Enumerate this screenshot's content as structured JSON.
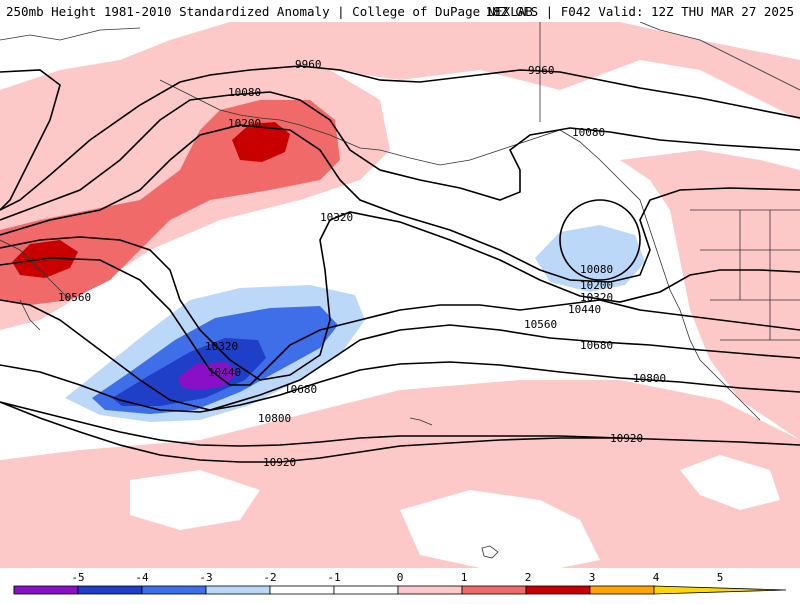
{
  "header": {
    "title_left": "250mb Height 1981-2010 Standardized Anomaly | College of DuPage NEXLAB",
    "title_right": "18Z GFS | F042 Valid: 12Z THU MAR 27 2025"
  },
  "contour_labels": {
    "c9960": "9960",
    "c10080": "10080",
    "c10200": "10200",
    "c10320": "10320",
    "c10440": "10440",
    "c10560": "10560",
    "c10680": "10680",
    "c10800": "10800",
    "c10920": "10920"
  },
  "legend": {
    "ticks": [
      "-5",
      "-4",
      "-3",
      "-2",
      "-1",
      "0",
      "1",
      "2",
      "3",
      "4",
      "5"
    ],
    "colors": [
      "#e060e0",
      "#8a10c8",
      "#1f3fc8",
      "#3f6fe8",
      "#bcd8f8",
      "#ffffff",
      "#ffffff",
      "#fcc8c8",
      "#f06a6a",
      "#c80000",
      "#ffa500",
      "#ffd700"
    ]
  }
}
